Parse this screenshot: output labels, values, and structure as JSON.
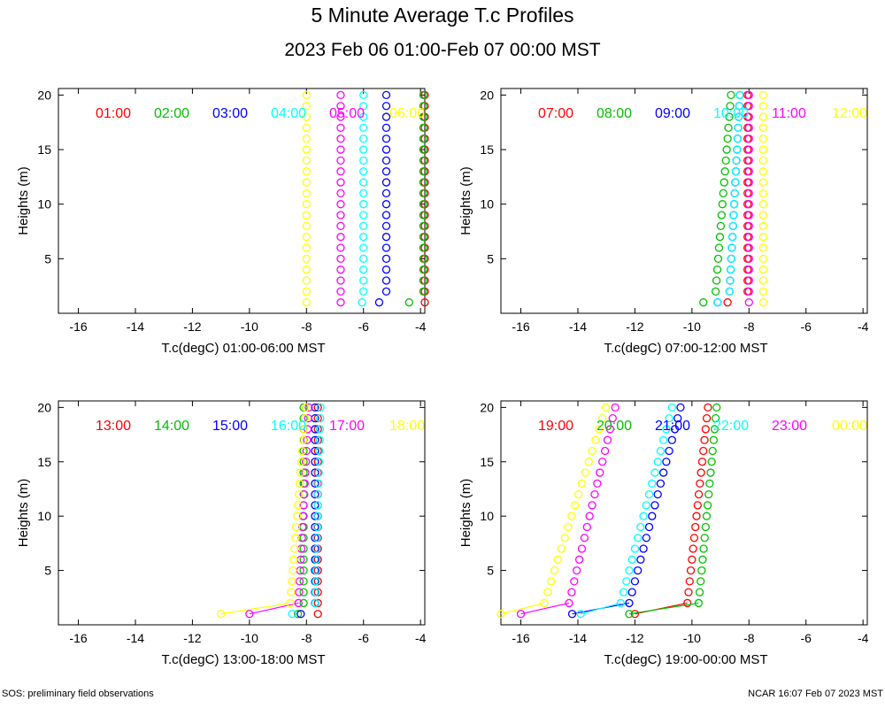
{
  "title": "5 Minute Average T.c Profiles",
  "subtitle": "2023 Feb 06 01:00-Feb 07 00:00 MST",
  "footer_left": "SOS: preliminary field observations",
  "footer_right": "NCAR 16:07 Feb 07 2023 MST",
  "colors": [
    "#ff0000",
    "#00c000",
    "#0000ff",
    "#00ffff",
    "#ff00ff",
    "#ffff00"
  ],
  "chart_data": [
    {
      "type": "scatter",
      "xlabel": "T.c(degC) 01:00-06:00 MST",
      "ylabel": "Heights (m)",
      "xlim": [
        -16.7,
        -3.85
      ],
      "ylim": [
        0,
        20.6
      ],
      "xticks": [
        "-16",
        "-14",
        "-12",
        "-10",
        "-8",
        "-6",
        "-4"
      ],
      "yticks": [
        "5",
        "10",
        "15",
        "20"
      ],
      "series": [
        {
          "name": "01:00",
          "x0": -3.85,
          "slope": 0.0,
          "off1": 0.0
        },
        {
          "name": "02:00",
          "x0": -3.9,
          "slope": 0.0,
          "off1": -0.5
        },
        {
          "name": "03:00",
          "x0": -5.2,
          "slope": 0.0,
          "off1": -0.25
        },
        {
          "name": "04:00",
          "x0": -6.0,
          "slope": 0.0,
          "off1": -0.05
        },
        {
          "name": "05:00",
          "x0": -6.8,
          "slope": 0.0,
          "off1": 0.0
        },
        {
          "name": "06:00",
          "x0": -8.0,
          "slope": 0.0,
          "off1": 0.0
        }
      ]
    },
    {
      "type": "scatter",
      "xlabel": "T.c(degC) 07:00-12:00 MST",
      "ylabel": "Heights (m)",
      "xlim": [
        -16.7,
        -3.85
      ],
      "ylim": [
        0,
        20.6
      ],
      "xticks": [
        "-16",
        "-14",
        "-12",
        "-10",
        "-8",
        "-6",
        "-4"
      ],
      "yticks": [
        "5",
        "10",
        "15",
        "20"
      ],
      "series": [
        {
          "name": "07:00",
          "x0": -8.05,
          "slope": 0.0,
          "off1": -0.7
        },
        {
          "name": "08:00",
          "x0": -9.2,
          "slope": 0.03,
          "off1": -0.4
        },
        {
          "name": "09:00",
          "x0": -8.7,
          "slope": 0.02,
          "off1": -0.4
        },
        {
          "name": "10:00",
          "x0": -8.7,
          "slope": 0.02,
          "off1": -0.4
        },
        {
          "name": "11:00",
          "x0": -8.0,
          "slope": 0.0,
          "off1": 0.0
        },
        {
          "name": "12:00",
          "x0": -7.5,
          "slope": 0.0,
          "off1": 0.0
        }
      ]
    },
    {
      "type": "scatter",
      "xlabel": "T.c(degC) 13:00-18:00 MST",
      "ylabel": "Heights (m)",
      "xlim": [
        -16.7,
        -3.85
      ],
      "ylim": [
        0,
        20.6
      ],
      "xticks": [
        "-16",
        "-14",
        "-12",
        "-10",
        "-8",
        "-6",
        "-4"
      ],
      "yticks": [
        "5",
        "10",
        "15",
        "20"
      ],
      "series": [
        {
          "name": "13:00",
          "x0": -7.6,
          "slope": 0.0,
          "off1": 0.0
        },
        {
          "name": "14:00",
          "x0": -8.1,
          "slope": 0.0,
          "off1": -0.2
        },
        {
          "name": "15:00",
          "x0": -7.7,
          "slope": 0.0,
          "off1": -0.5
        },
        {
          "name": "16:00",
          "x0": -7.7,
          "slope": 0.01,
          "off1": -0.8
        },
        {
          "name": "17:00",
          "x0": -8.3,
          "slope": 0.02,
          "off1": -1.7
        },
        {
          "name": "18:00",
          "x0": -8.6,
          "slope": 0.03,
          "off1": -2.4
        }
      ]
    },
    {
      "type": "scatter",
      "xlabel": "T.c(degC) 19:00-00:00 MST",
      "ylabel": "Heights (m)",
      "xlim": [
        -16.7,
        -3.85
      ],
      "ylim": [
        0,
        20.6
      ],
      "xticks": [
        "-16",
        "-14",
        "-12",
        "-10",
        "-8",
        "-6",
        "-4"
      ],
      "yticks": [
        "5",
        "10",
        "15",
        "20"
      ],
      "series": [
        {
          "name": "19:00",
          "x0": -10.2,
          "slope": 0.04,
          "off1": -1.8
        },
        {
          "name": "20:00",
          "x0": -9.8,
          "slope": 0.035,
          "off1": -2.4
        },
        {
          "name": "21:00",
          "x0": -12.3,
          "slope": 0.1,
          "off1": -1.9
        },
        {
          "name": "22:00",
          "x0": -12.6,
          "slope": 0.1,
          "off1": -1.3
        },
        {
          "name": "23:00",
          "x0": -14.4,
          "slope": 0.09,
          "off1": -1.6
        },
        {
          "name": "00:00",
          "x0": -15.3,
          "slope": 0.12,
          "off1": -1.4
        }
      ]
    }
  ]
}
